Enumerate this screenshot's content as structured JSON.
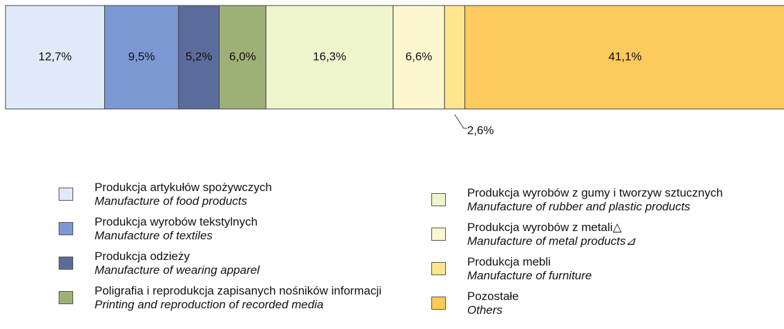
{
  "chart_data": {
    "type": "stacked-bar",
    "xlim": [
      0,
      100
    ],
    "series": [
      {
        "name": "Produkcja artykułów spożywczych",
        "name_en": "Manufacture of food products",
        "color": "#dfe9f7",
        "values": [
          12.7
        ],
        "value_labels": [
          "12,7%"
        ]
      },
      {
        "name": "Produkcja wyrobów tekstylnych",
        "name_en": "Manufacture of textiles",
        "color": "#7b98d4",
        "values": [
          9.5
        ],
        "value_labels": [
          "9,5%"
        ]
      },
      {
        "name": "Produkcja odzieży",
        "name_en": "Manufacture of wearing apparel",
        "color": "#5b6c9c",
        "values": [
          5.2
        ],
        "value_labels": [
          "5,2%"
        ]
      },
      {
        "name": "Poligrafia i reprodukcja zapisanych nośników informacji",
        "name_en": "Printing and reproduction of recorded media",
        "color": "#9db176",
        "values": [
          6.0
        ],
        "value_labels": [
          "6,0%"
        ]
      },
      {
        "name": "Produkcja wyrobów z gumy i tworzyw sztucznych",
        "name_en": "Manufacture of rubber and plastic products",
        "color": "#eef4cc",
        "values": [
          16.3
        ],
        "value_labels": [
          "16,3%"
        ]
      },
      {
        "name": "Produkcja wyrobów z metali△",
        "name_en": "Manufacture of metal products⊿",
        "color": "#fcf7cf",
        "values": [
          6.6
        ],
        "value_labels": [
          "6,6%"
        ]
      },
      {
        "name": "Produkcja mebli",
        "name_en": "Manufacture of furniture",
        "color": "#fde68e",
        "values": [
          2.6
        ],
        "value_labels": [
          "2,6%"
        ]
      },
      {
        "name": "Pozostałe",
        "name_en": "Others",
        "color": "#fec95d",
        "values": [
          41.1
        ],
        "value_labels": [
          "41,1%"
        ]
      }
    ]
  }
}
